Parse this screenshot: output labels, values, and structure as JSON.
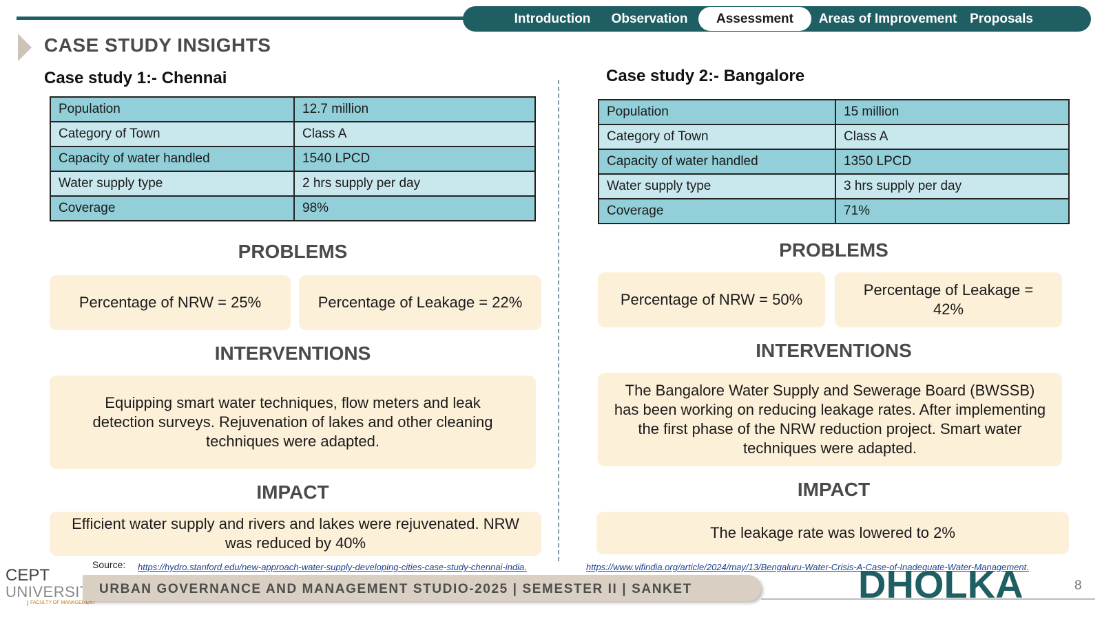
{
  "nav": {
    "items": [
      {
        "label": "Introduction",
        "active": false
      },
      {
        "label": "Observation",
        "active": false
      },
      {
        "label": "Assessment",
        "active": true
      },
      {
        "label": "Areas of Improvement",
        "active": false
      },
      {
        "label": "Proposals",
        "active": false
      }
    ]
  },
  "page_title": "CASE STUDY INSIGHTS",
  "case1": {
    "title": "Case study 1:- Chennai",
    "table": [
      [
        "Population",
        "12.7 million"
      ],
      [
        "Category of Town",
        "Class A"
      ],
      [
        "Capacity of water handled",
        "1540 LPCD"
      ],
      [
        "Water supply type",
        "2 hrs supply per day"
      ],
      [
        "Coverage",
        "98%"
      ]
    ],
    "problems_heading": "PROBLEMS",
    "problem_1": "Percentage of NRW = 25%",
    "problem_2": "Percentage of Leakage = 22%",
    "interventions_heading": "INTERVENTIONS",
    "interventions": "Equipping smart water techniques, flow meters and leak detection surveys. Rejuvenation of lakes and other cleaning techniques were adapted.",
    "impact_heading": "IMPACT",
    "impact": "Efficient water supply and rivers and lakes were rejuvenated. NRW was reduced by 40%"
  },
  "case2": {
    "title": "Case study 2:- Bangalore",
    "table": [
      [
        "Population",
        "15 million"
      ],
      [
        "Category of Town",
        "Class A"
      ],
      [
        "Capacity of water handled",
        "1350 LPCD"
      ],
      [
        "Water supply type",
        "3 hrs supply per day"
      ],
      [
        "Coverage",
        "71%"
      ]
    ],
    "problems_heading": "PROBLEMS",
    "problem_1": "Percentage of NRW = 50%",
    "problem_2": "Percentage of Leakage = 42%",
    "interventions_heading": "INTERVENTIONS",
    "interventions": "The Bangalore Water Supply and Sewerage Board (BWSSB) has been working on reducing leakage rates. After implementing the first phase of the NRW reduction project. Smart water techniques were adapted.",
    "impact_heading": "IMPACT",
    "impact": "The leakage rate was lowered to 2%"
  },
  "source": {
    "label": "Source:",
    "link_1": "https://hydro.stanford.edu/new-approach-water-supply-developing-cities-case-study-chennai-india.",
    "link_2": "https://www.vifindia.org/article/2024/may/13/Bengaluru-Water-Crisis-A-Case-of-Inadequate-Water-Management."
  },
  "footer": {
    "text": "URBAN GOVERNANCE  AND MANAGEMENT STUDIO-2025 | SEMESTER II | SANKET",
    "brand": "DHOLKA",
    "page_number": "8",
    "logo_line_1": "CEPT",
    "logo_line_2": "UNIVERSITY",
    "logo_faculty": "FACULTY OF MANAGEMENT"
  },
  "colors": {
    "accent": "#1f5f64",
    "table_dark": "#92cfd9",
    "table_light": "#c9e8ee",
    "box_fill": "#fdf0d9"
  }
}
